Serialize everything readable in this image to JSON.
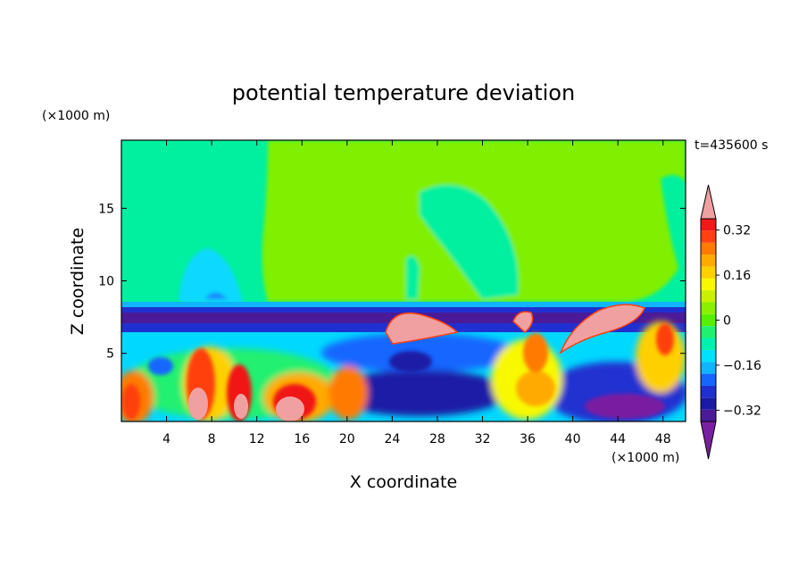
{
  "chart_data": {
    "type": "heatmap",
    "title": "potential temperature deviation",
    "time_label": "t=435600 s",
    "xlabel": "X coordinate",
    "ylabel": "Z coordinate",
    "x_unit": "(×1000 m)",
    "y_unit": "(×1000 m)",
    "xlim": [
      0,
      50
    ],
    "ylim": [
      0.3,
      19.7
    ],
    "x_ticks": [
      4,
      8,
      12,
      16,
      20,
      24,
      28,
      32,
      36,
      40,
      44,
      48
    ],
    "y_ticks": [
      5,
      10,
      15
    ],
    "colorbar": {
      "levels": [
        -0.4,
        -0.36,
        -0.32,
        -0.28,
        -0.24,
        -0.2,
        -0.16,
        -0.12,
        -0.08,
        -0.04,
        0,
        0.04,
        0.08,
        0.12,
        0.16,
        0.2,
        0.24,
        0.28,
        0.32,
        0.36,
        0.4
      ],
      "labels": [
        "0.32",
        "0.16",
        "0",
        "−0.16",
        "−0.32"
      ],
      "label_values": [
        0.32,
        0.16,
        0,
        -0.16,
        -0.32
      ],
      "colors": [
        "#7a1fa2",
        "#4b1a99",
        "#1a1aa6",
        "#2030d0",
        "#1466ff",
        "#10b4ff",
        "#00e0ff",
        "#00f0b0",
        "#20f070",
        "#55f000",
        "#88f000",
        "#c8f000",
        "#f8f800",
        "#ffd000",
        "#ffaa00",
        "#ff7a00",
        "#ff4010",
        "#f01818",
        "#f0a0a0"
      ],
      "extend": "both"
    },
    "features": [
      {
        "x": 7.5,
        "z": 2.0,
        "value": 0.38
      },
      {
        "x": 14.5,
        "z": 1.6,
        "value": 0.36
      },
      {
        "x": 1.0,
        "z": 2.2,
        "value": 0.3
      },
      {
        "x": 26.0,
        "z": 6.6,
        "value": 0.4
      },
      {
        "x": 42.0,
        "z": 7.3,
        "value": 0.4
      },
      {
        "x": 36.0,
        "z": 7.3,
        "value": 0.4
      },
      {
        "x": 44.0,
        "z": 1.2,
        "value": -0.4
      },
      {
        "x": 9.0,
        "z": 11.0,
        "value": -0.14
      }
    ]
  }
}
